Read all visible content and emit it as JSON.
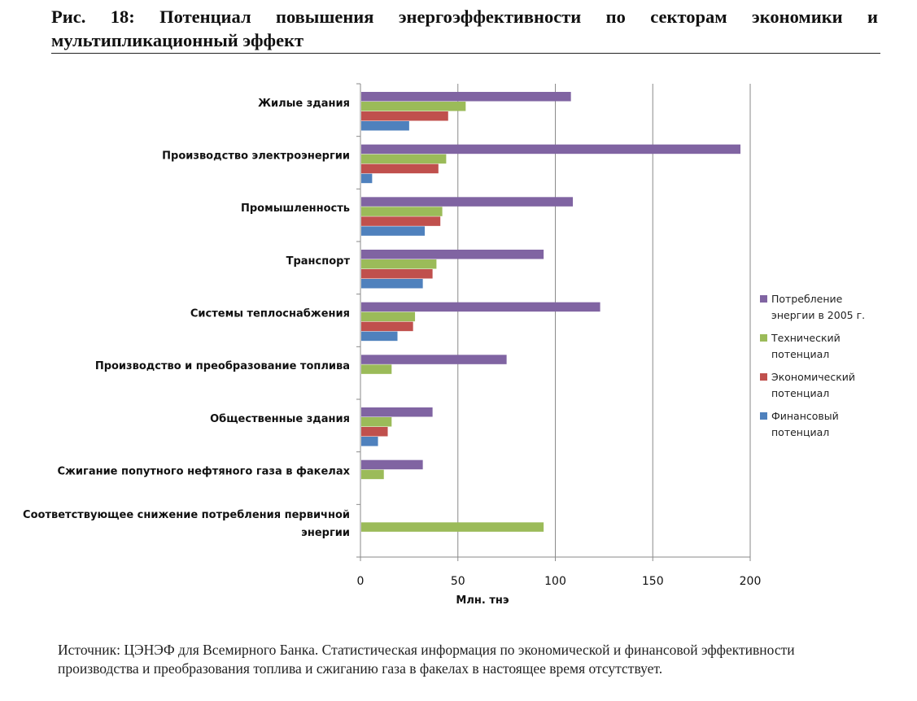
{
  "figure": {
    "title": "Рис. 18: Потенциал повышения энергоэффективности по секторам экономики и мультипликационный эффект",
    "caption": "Источник: ЦЭНЭФ для Всемирного Банка.  Статистическая информация по экономической и финансовой эффективности производства и преобразования топлива и сжиганию газа в факелах в настоящее время отсутствует."
  },
  "chart_data": {
    "type": "bar",
    "orientation": "horizontal",
    "xlabel": "Млн. тнэ",
    "xlim": [
      0,
      200
    ],
    "xticks": [
      0,
      50,
      100,
      150,
      200
    ],
    "grid": "vertical",
    "legend_position": "right",
    "categories": [
      [
        "Жилые здания"
      ],
      [
        "Производство электроэнергии"
      ],
      [
        "Промышленность"
      ],
      [
        "Транспорт"
      ],
      [
        "Системы теплоснабжения"
      ],
      [
        "Производство и преобразование топлива"
      ],
      [
        "Общественные здания"
      ],
      [
        "Сжигание попутного нефтяного газа в факелах"
      ],
      [
        "Соответствующее снижение потребления первичной",
        "энергии"
      ]
    ],
    "series": [
      {
        "name": [
          "Потребление",
          "энергии в 2005 г."
        ],
        "color": "#8064A2",
        "values": [
          108,
          195,
          109,
          94,
          123,
          75,
          37,
          32,
          null
        ]
      },
      {
        "name": [
          "Технический",
          "потенциал"
        ],
        "color": "#9BBB59",
        "values": [
          54,
          44,
          42,
          39,
          28,
          16,
          16,
          12,
          94
        ]
      },
      {
        "name": [
          "Экономический",
          "потенциал"
        ],
        "color": "#C0504D",
        "values": [
          45,
          40,
          41,
          37,
          27,
          null,
          14,
          null,
          null
        ]
      },
      {
        "name": [
          "Финансовый",
          "потенциал"
        ],
        "color": "#4F81BD",
        "values": [
          25,
          6,
          33,
          32,
          19,
          null,
          9,
          null,
          null
        ]
      }
    ]
  }
}
